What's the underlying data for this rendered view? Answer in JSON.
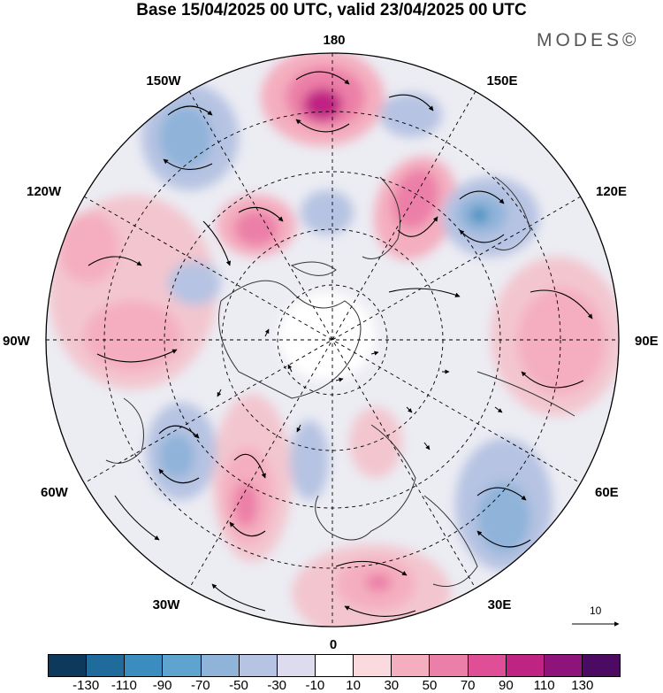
{
  "title": "Base 15/04/2025 00 UTC, valid 23/04/2025 00 UTC",
  "brand": "MODES©",
  "longitude_labels": {
    "n180": "180",
    "w150": "150W",
    "e150": "150E",
    "w120": "120W",
    "e120": "120E",
    "w90": "90W",
    "e90": "90E",
    "w60": "60W",
    "e60": "60E",
    "w30": "30W",
    "e30": "30E",
    "zero": "0"
  },
  "reference_vector_label": "10",
  "colorbar": {
    "colors": [
      "#0d3a5c",
      "#1f6b9c",
      "#3b8dc0",
      "#5fa3cf",
      "#8fb3d9",
      "#b6c3e2",
      "#dcdcee",
      "#ffffff",
      "#fadadf",
      "#f4aebf",
      "#ec7fa7",
      "#de4f98",
      "#c02483",
      "#8e137a",
      "#4c0a63"
    ],
    "tick_labels": [
      "-130",
      "-110",
      "-90",
      "-70",
      "-50",
      "-30",
      "-10",
      "10",
      "30",
      "50",
      "70",
      "90",
      "110",
      "130"
    ]
  },
  "anomaly_centers": [
    {
      "name": "pos-aleutian",
      "color": "#de4f98"
    },
    {
      "name": "neg-alaska",
      "color": "#8fb3d9"
    }
  ]
}
